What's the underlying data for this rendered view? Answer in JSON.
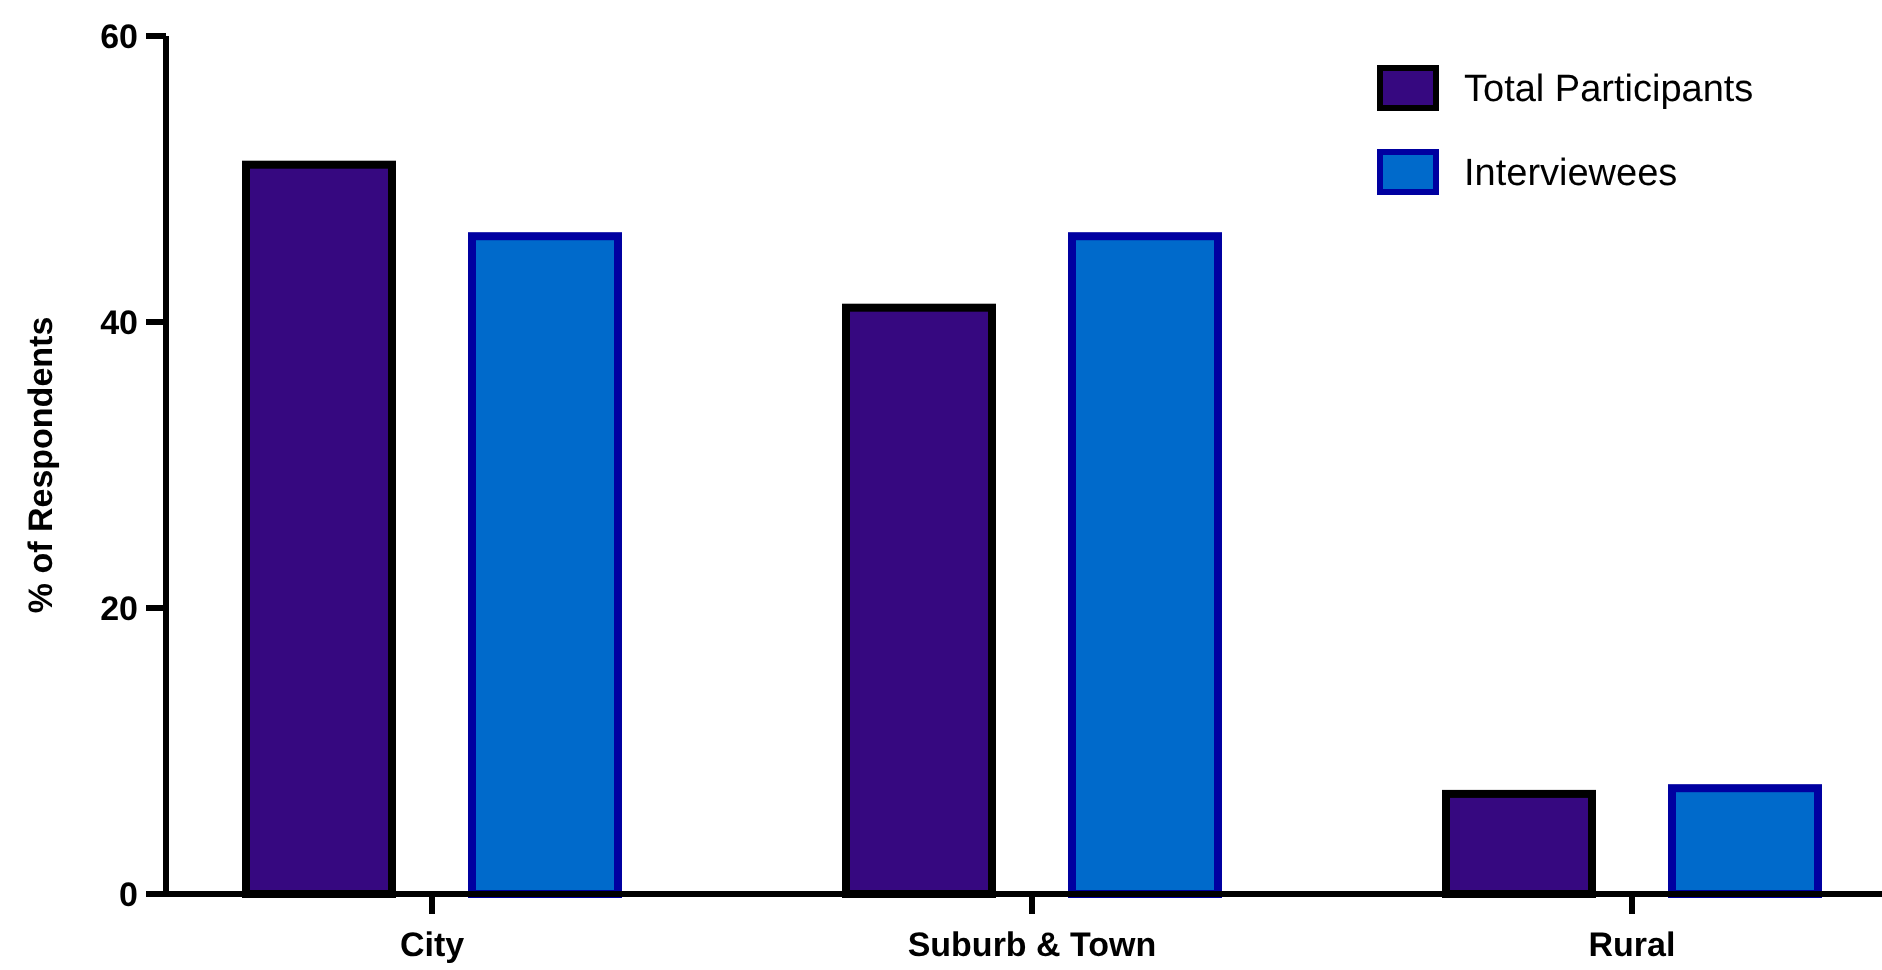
{
  "chart_data": {
    "type": "bar",
    "ylabel": "% of Respondents",
    "categories": [
      "City",
      "Suburb & Town",
      "Rural"
    ],
    "series": [
      {
        "name": "Total Participants",
        "color": "#360880",
        "values": [
          51,
          41,
          7
        ]
      },
      {
        "name": "Interviewees",
        "color": "#006acb",
        "values": [
          46,
          46,
          7.4
        ]
      }
    ],
    "ylim": [
      0,
      60
    ],
    "yticks": [
      0,
      20,
      40,
      60
    ],
    "legend": "top right",
    "grid": false
  }
}
